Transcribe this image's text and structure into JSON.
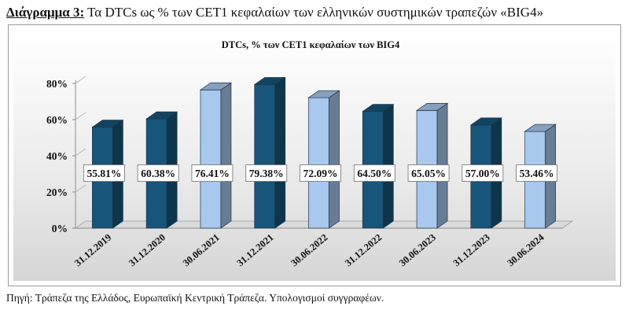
{
  "caption": {
    "label": "Διάγραμμα 3:",
    "text": " Τα DTCs ως % των CET1 κεφαλαίων των ελληνικών συστημικών τραπεζών «BIG4»"
  },
  "source": "Πηγή: Τράπεζα της Ελλάδος, Ευρωπαϊκή Κεντρική Τράπεζα. Υπολογισμοί συγγραφέων.",
  "colors": {
    "dark_bar": "#17557a",
    "light_bar": "#a8c8ee"
  },
  "chart_data": {
    "type": "bar",
    "title": "DTCs, % των CET1 κεφαλαίων των BIG4",
    "xlabel": "",
    "ylabel": "",
    "ylim": [
      0,
      80
    ],
    "yticks": [
      "0%",
      "20%",
      "40%",
      "60%",
      "80%"
    ],
    "grid": false,
    "legend": "none",
    "bar_style": "3d",
    "categories": [
      "31.12.2019",
      "31.12.2020",
      "30.06.2021",
      "31.12.2021",
      "30.06.2022",
      "31.12.2022",
      "30.06.2023",
      "31.12.2023",
      "30.06.2024"
    ],
    "values": [
      55.81,
      60.38,
      76.41,
      79.38,
      72.09,
      64.5,
      65.05,
      57.0,
      53.46
    ],
    "data_labels": [
      "55.81%",
      "60.38%",
      "76.41%",
      "79.38%",
      "72.09%",
      "64.50%",
      "65.05%",
      "57.00%",
      "53.46%"
    ],
    "bar_colors": [
      "dark",
      "dark",
      "light",
      "dark",
      "light",
      "dark",
      "light",
      "dark",
      "light"
    ]
  }
}
